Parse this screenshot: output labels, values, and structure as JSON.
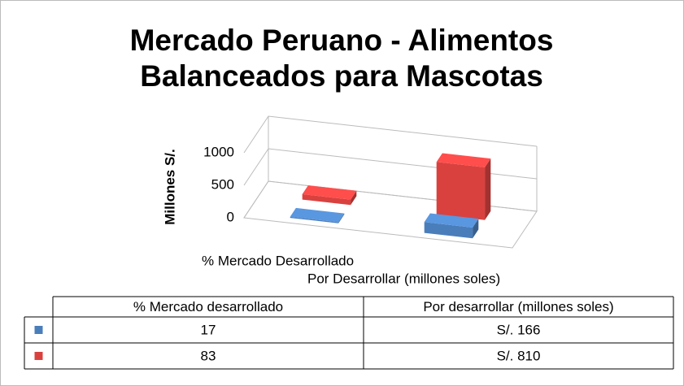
{
  "chart_data": {
    "type": "bar3d",
    "title": "Mercado Peruano - Alimentos Balanceados para Mascotas",
    "y_label": "Millones S/.",
    "categories": [
      "% Mercado Desarrollado",
      "Por Desarrollar (millones soles)"
    ],
    "table_headers": [
      "% Mercado  desarrollado",
      "Por desarrollar (millones soles)"
    ],
    "series": [
      {
        "color": "#4a7ebb",
        "values": [
          17,
          166
        ],
        "value_labels": [
          "17",
          "S/. 166"
        ]
      },
      {
        "color": "#d9413f",
        "values": [
          83,
          810
        ],
        "value_labels": [
          "83",
          "S/. 810"
        ]
      }
    ],
    "ylim": [
      0,
      1000
    ],
    "yticks": [
      0,
      500,
      1000
    ],
    "grid": true
  }
}
